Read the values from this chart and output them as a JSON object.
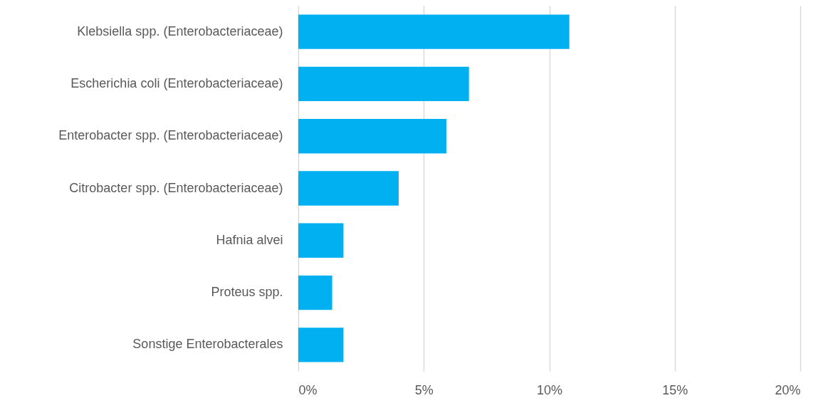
{
  "chart_data": {
    "type": "bar",
    "orientation": "horizontal",
    "categories": [
      "Klebsiella spp. (Enterobacteriaceae)",
      "Escherichia coli (Enterobacteriaceae)",
      "Enterobacter spp. (Enterobacteriaceae)",
      "Citrobacter spp. (Enterobacteriaceae)",
      "Hafnia alvei",
      "Proteus spp.",
      "Sonstige Enterobacterales"
    ],
    "values": [
      10.8,
      6.8,
      5.9,
      4.0,
      1.8,
      1.35,
      1.8
    ],
    "color": "#00b0f0",
    "xlim": [
      0,
      20
    ],
    "xticks": [
      {
        "value": 0,
        "label": "0%"
      },
      {
        "value": 5,
        "label": "5%"
      },
      {
        "value": 10,
        "label": "10%"
      },
      {
        "value": 15,
        "label": "15%"
      },
      {
        "value": 20,
        "label": "20%"
      }
    ],
    "grid": "x"
  }
}
